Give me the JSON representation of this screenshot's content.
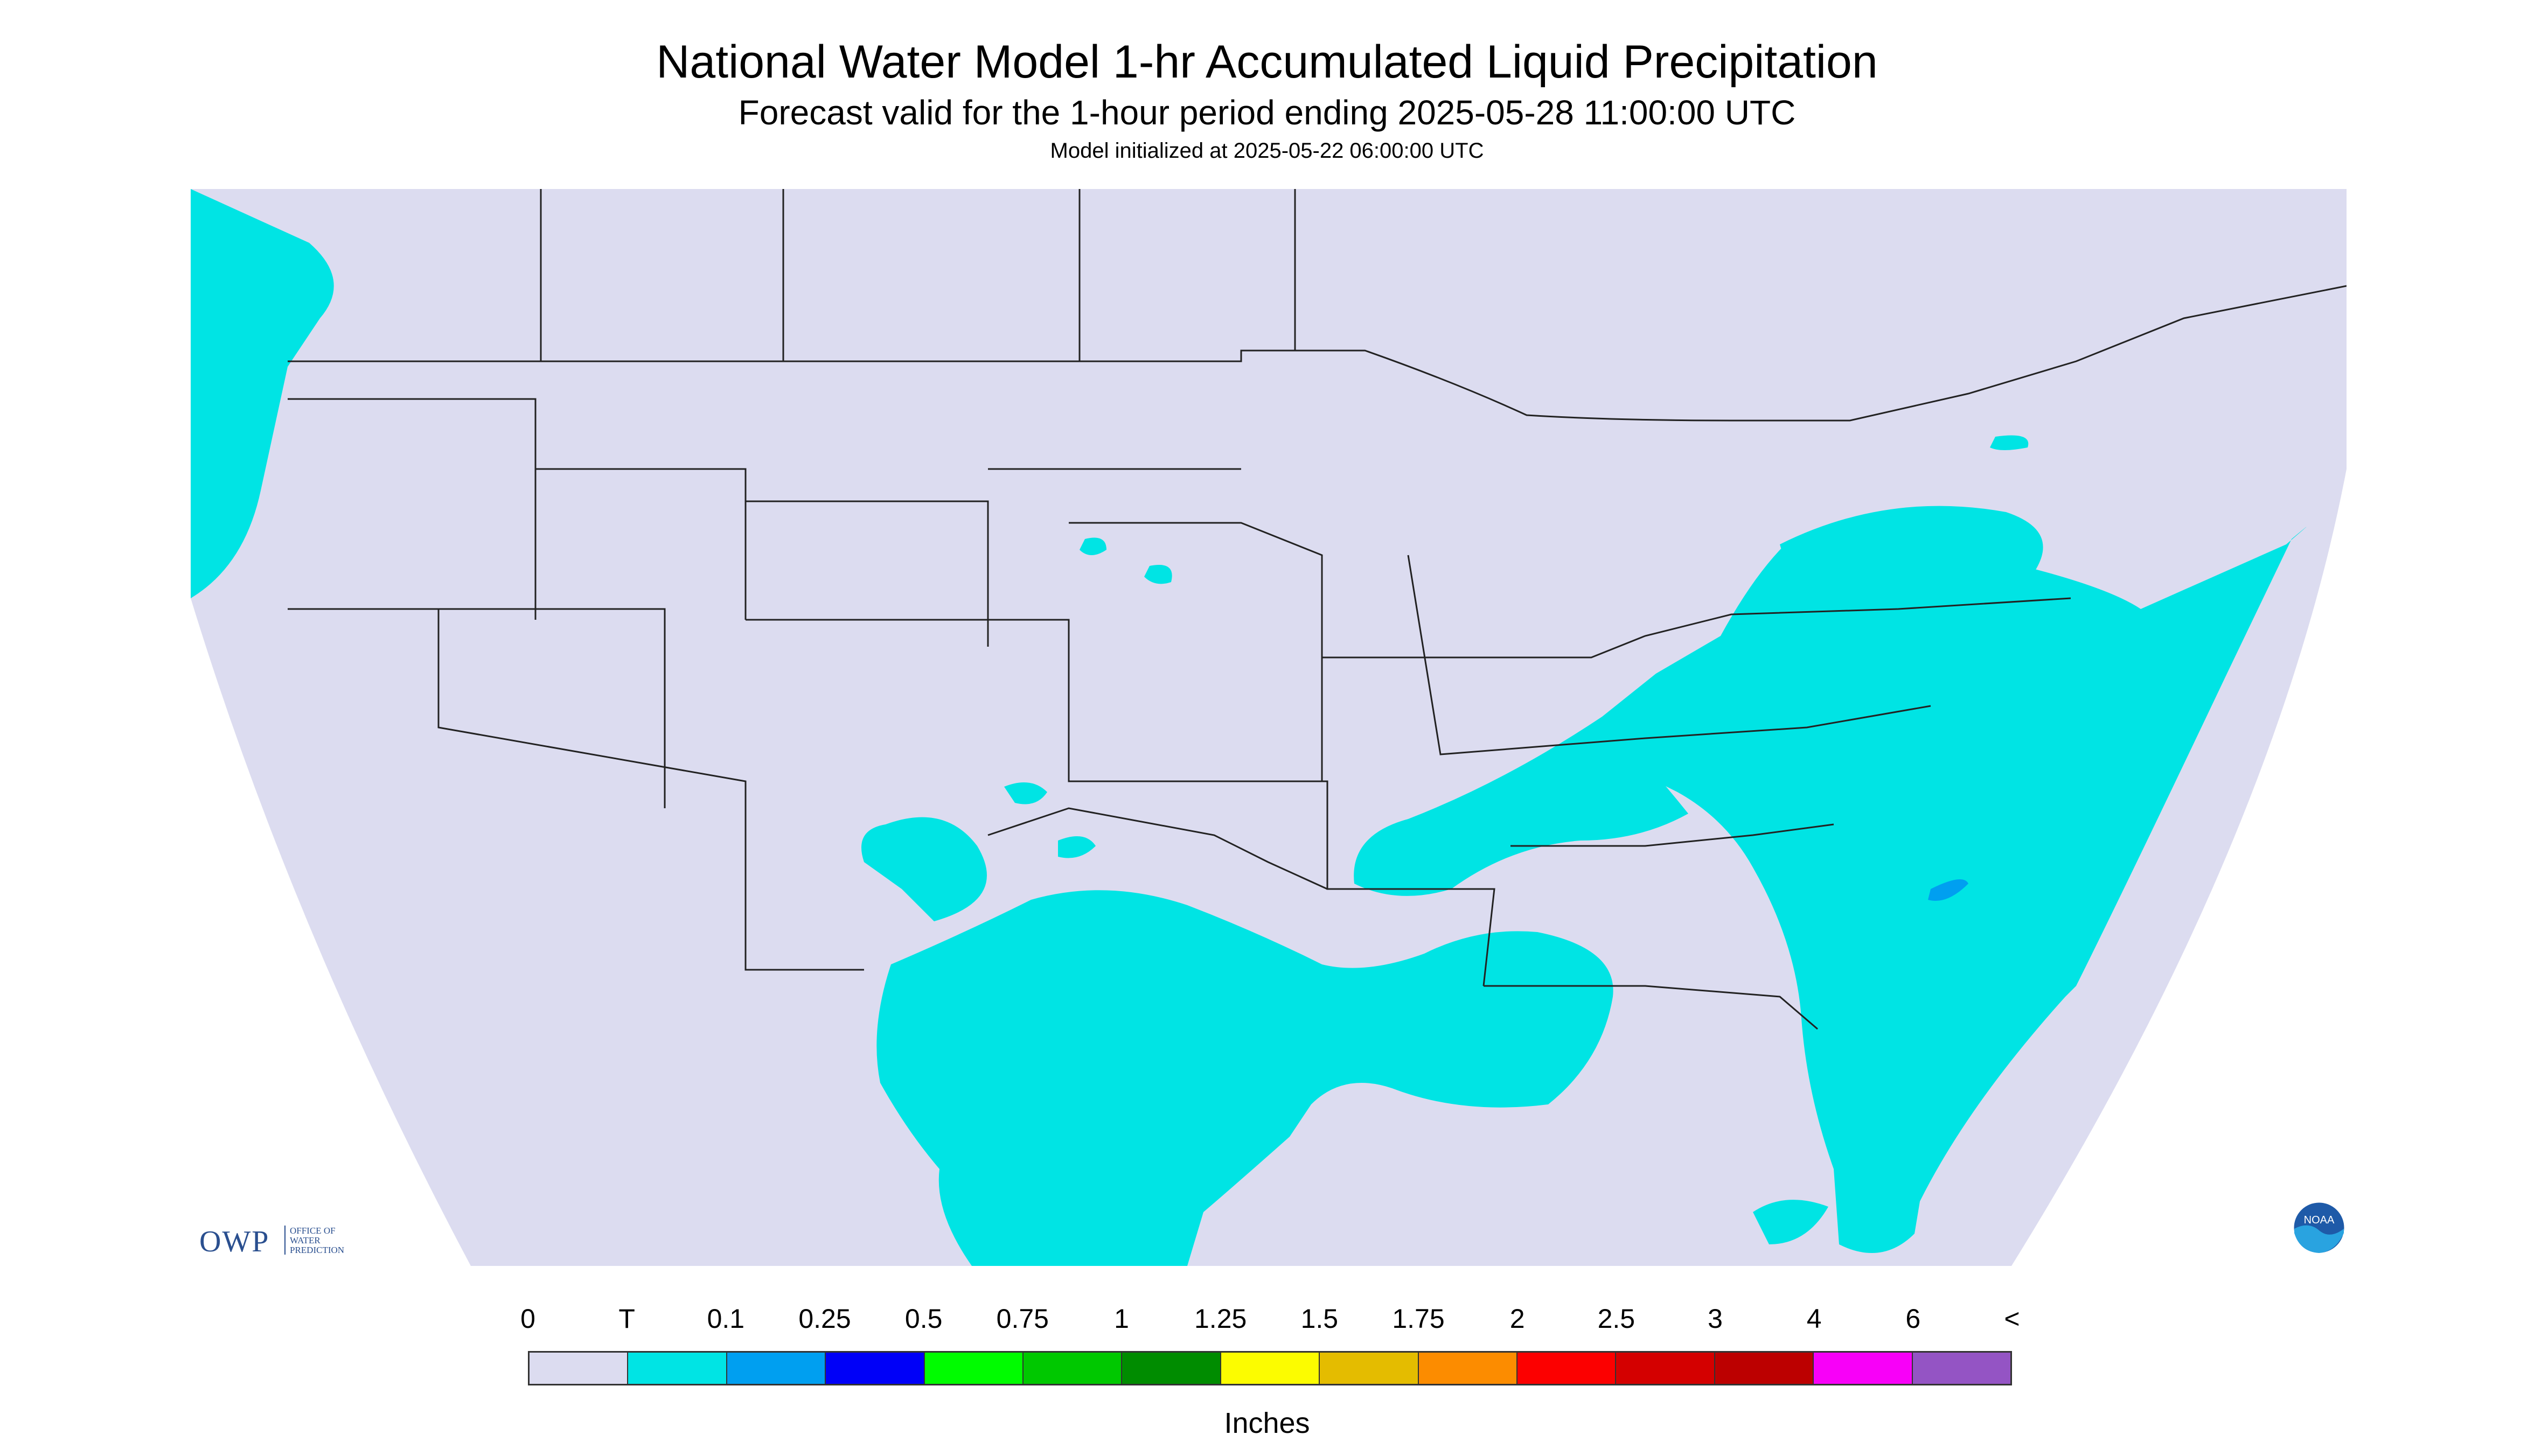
{
  "title": "National Water Model 1-hr Accumulated Liquid Precipitation",
  "subtitle": "Forecast valid for the 1-hour period ending 2025-05-28 11:00:00 UTC",
  "init_line": "Model initialized at 2025-05-22 06:00:00 UTC",
  "logo_owp": {
    "text": "OWP",
    "line1": "OFFICE OF",
    "line2": "WATER",
    "line3": "PREDICTION"
  },
  "logo_noaa": {
    "text": "NOAA"
  },
  "legend": {
    "labels": [
      "0",
      "T",
      "0.1",
      "0.25",
      "0.5",
      "0.75",
      "1",
      "1.25",
      "1.5",
      "1.75",
      "2",
      "2.5",
      "3",
      "4",
      "6",
      "<"
    ],
    "colors": [
      "#dcdcf0",
      "#00e4e4",
      "#009ff0",
      "#0000f8",
      "#00fc00",
      "#00c800",
      "#008c00",
      "#fcfc00",
      "#e4bc00",
      "#fc8c00",
      "#fc0000",
      "#d40000",
      "#bc0000",
      "#f800f8",
      "#9454c4"
    ],
    "units": "Inches"
  },
  "colors": {
    "background_field": "#dcdcf0",
    "trace": "#00e4e4",
    "light": "#009ff0",
    "borders": "#222222"
  }
}
